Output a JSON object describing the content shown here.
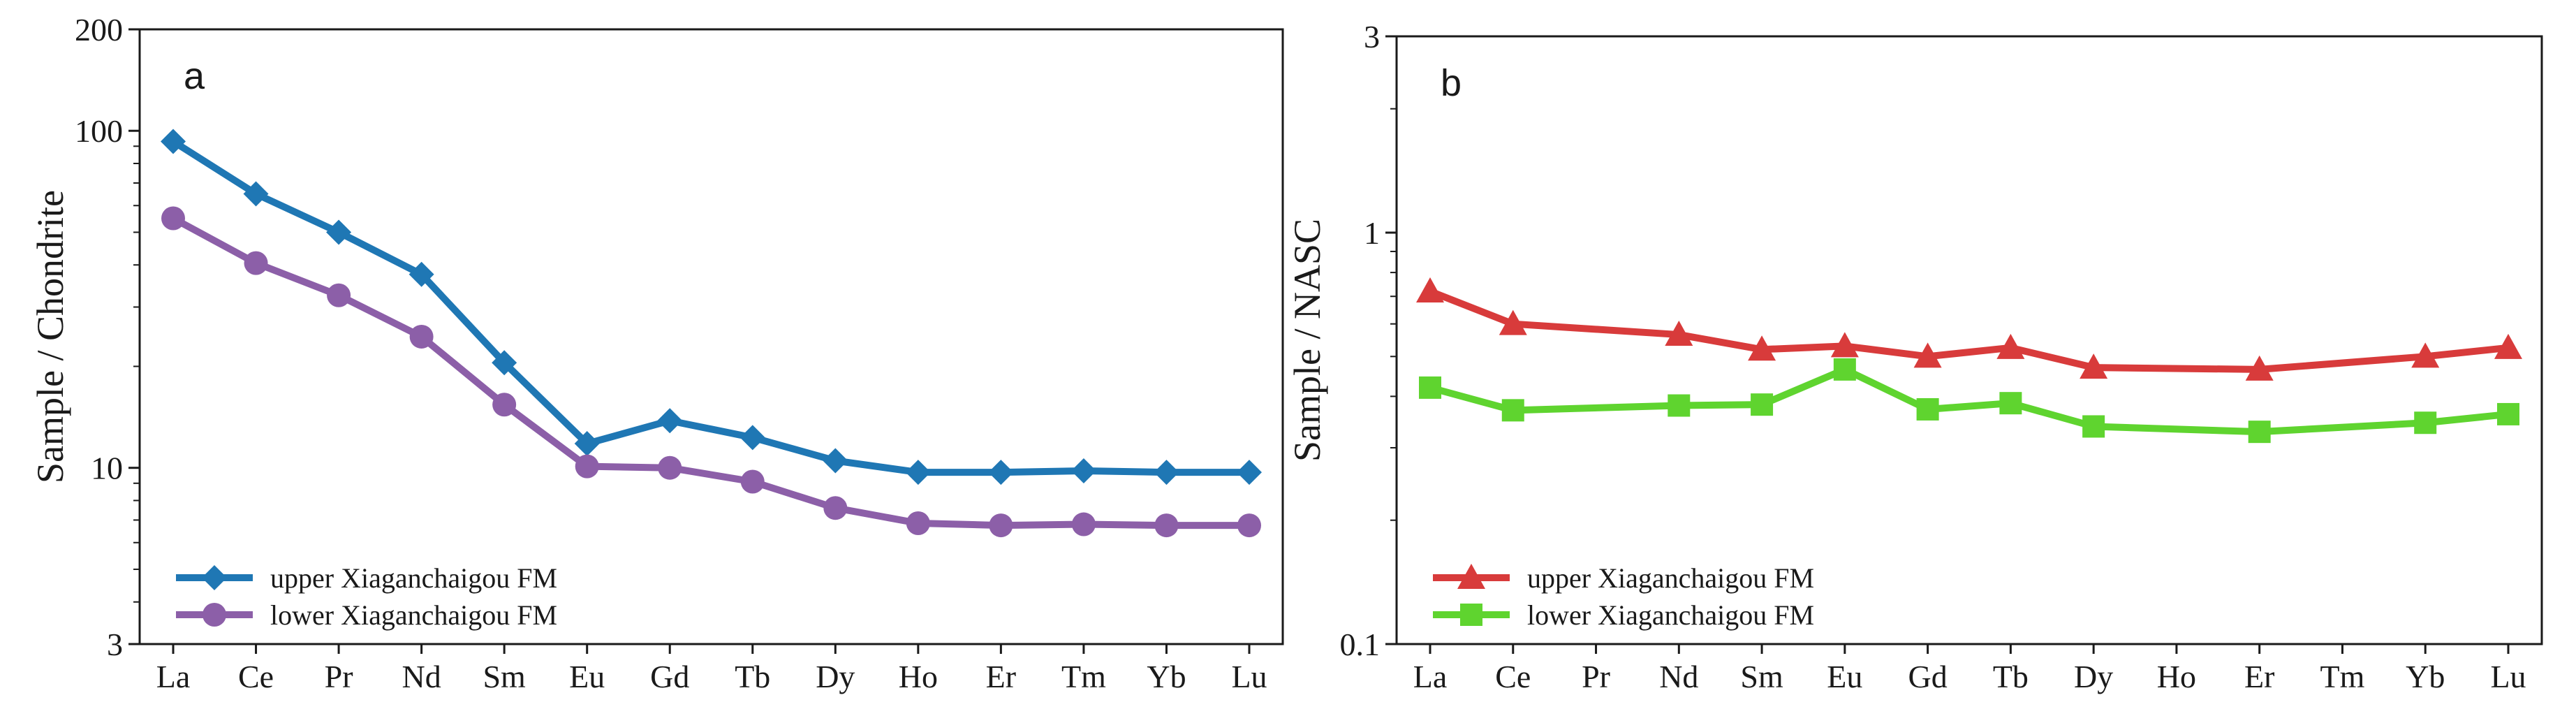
{
  "chart_data": [
    {
      "type": "line",
      "panel_label": "a",
      "ylabel": "Sample / Chondrite",
      "xlabel": "",
      "y_scale": "log",
      "ylim": [
        3,
        200
      ],
      "yticks": [
        3,
        10,
        100,
        200
      ],
      "ytick_labels": [
        "3",
        "10",
        "100",
        "200"
      ],
      "categories": [
        "La",
        "Ce",
        "Pr",
        "Nd",
        "Sm",
        "Eu",
        "Gd",
        "Tb",
        "Dy",
        "Ho",
        "Er",
        "Tm",
        "Yb",
        "Lu"
      ],
      "grid": false,
      "legend_position": "bottom-left",
      "series": [
        {
          "name": "upper Xiaganchaigou FM",
          "color": "#1f77b4",
          "marker": "diamond",
          "values": [
            93,
            65,
            50,
            37.5,
            20.5,
            11.8,
            13.8,
            12.3,
            10.5,
            9.7,
            9.7,
            9.8,
            9.7,
            9.7
          ]
        },
        {
          "name": "lower Xiaganchaigou FM",
          "color": "#8c5fa8",
          "marker": "circle",
          "values": [
            55,
            40.5,
            32.5,
            24.5,
            15.4,
            10.1,
            10.0,
            9.1,
            7.6,
            6.85,
            6.75,
            6.8,
            6.75,
            6.75
          ]
        }
      ]
    },
    {
      "type": "line",
      "panel_label": "b",
      "ylabel": "Sample / NASC",
      "xlabel": "",
      "y_scale": "log",
      "ylim": [
        0.1,
        3
      ],
      "yticks": [
        0.1,
        1,
        3
      ],
      "ytick_labels": [
        "0.1",
        "1",
        "3"
      ],
      "categories": [
        "La",
        "Ce",
        "Pr",
        "Nd",
        "Sm",
        "Eu",
        "Gd",
        "Tb",
        "Dy",
        "Ho",
        "Er",
        "Tm",
        "Yb",
        "Lu"
      ],
      "grid": false,
      "legend_position": "bottom-left",
      "series": [
        {
          "name": "upper Xiaganchaigou FM",
          "color": "#d83b3b",
          "marker": "triangle",
          "values": [
            0.72,
            0.6,
            null,
            0.565,
            0.52,
            0.53,
            0.5,
            0.525,
            0.47,
            null,
            0.465,
            null,
            0.5,
            0.525
          ]
        },
        {
          "name": "lower Xiaganchaigou FM",
          "color": "#5fd42f",
          "marker": "square",
          "values": [
            0.42,
            0.37,
            null,
            0.38,
            0.382,
            0.465,
            0.372,
            0.385,
            0.338,
            null,
            0.328,
            null,
            0.345,
            0.362
          ]
        }
      ]
    }
  ]
}
